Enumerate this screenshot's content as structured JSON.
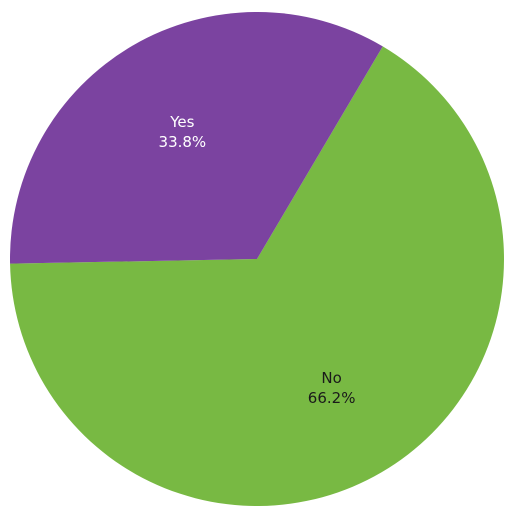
{
  "chart_data": {
    "type": "pie",
    "title": "",
    "slices": [
      {
        "label": "No",
        "value": 66.2,
        "value_label": "66.2%",
        "color": "#78b943",
        "text_color": "#1a1a1a"
      },
      {
        "label": "Yes",
        "value": 33.8,
        "value_label": "33.8%",
        "color": "#7b43a0",
        "text_color": "#ffffff"
      }
    ],
    "legend": "none",
    "labels_inside": true
  }
}
